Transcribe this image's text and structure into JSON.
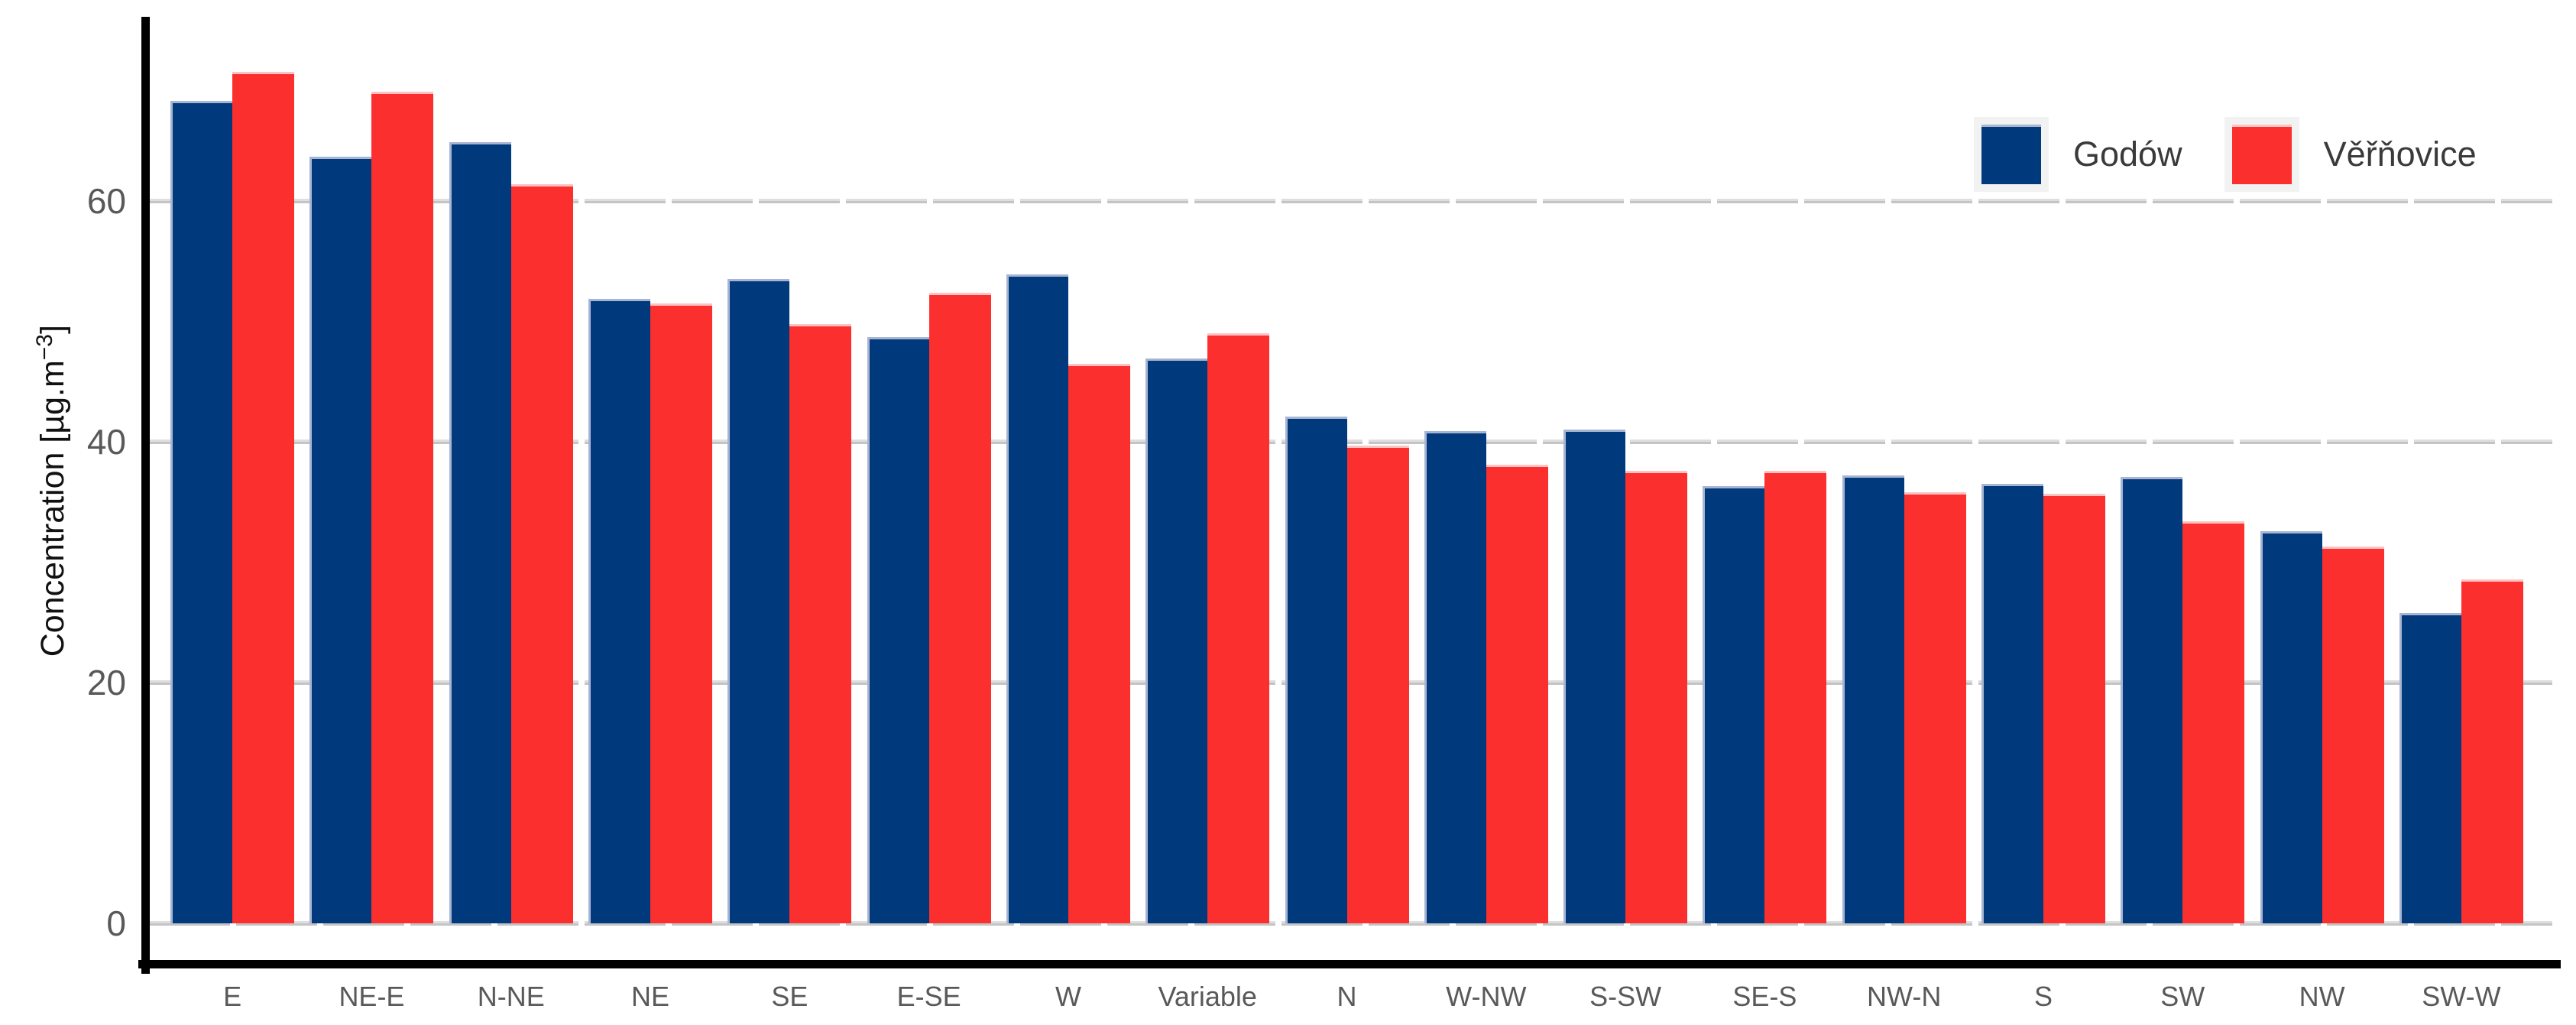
{
  "chart_data": {
    "type": "bar",
    "title": "",
    "xlabel": "",
    "ylabel": "Concentration [µg.m⁻³]",
    "ylabel_parts": {
      "base": "Concentration [µg.m",
      "sup": "−3",
      "end": "]"
    },
    "categories": [
      "E",
      "NE-E",
      "N-NE",
      "NE",
      "SE",
      "E-SE",
      "W",
      "Variable",
      "N",
      "W-NW",
      "S-SW",
      "SE-S",
      "NW-N",
      "S",
      "SW",
      "NW",
      "SW-W"
    ],
    "series": [
      {
        "name": "Godów",
        "color": "#003a7d",
        "values": [
          68.3,
          63.7,
          64.9,
          51.9,
          53.5,
          48.7,
          53.9,
          46.9,
          42.1,
          40.9,
          41.0,
          36.3,
          37.2,
          36.5,
          37.1,
          32.6,
          25.8
        ]
      },
      {
        "name": "Věřňovice",
        "color": "#fc2f2f",
        "values": [
          70.7,
          69.1,
          61.4,
          51.5,
          49.8,
          52.4,
          46.5,
          49.0,
          39.7,
          38.1,
          37.6,
          37.6,
          35.8,
          35.7,
          33.4,
          31.3,
          28.6
        ]
      }
    ],
    "yticks": [
      0,
      20,
      40,
      60
    ],
    "ylim": [
      0,
      75
    ],
    "grid": "dashed-horizontal",
    "legend_position": "top-right",
    "background": "#ffffff",
    "grid_color": "#c4c4c4"
  },
  "legend": {
    "entries": [
      {
        "label": "Godów",
        "color": "#003a7d"
      },
      {
        "label": "Věřňovice",
        "color": "#fc2f2f"
      }
    ]
  }
}
